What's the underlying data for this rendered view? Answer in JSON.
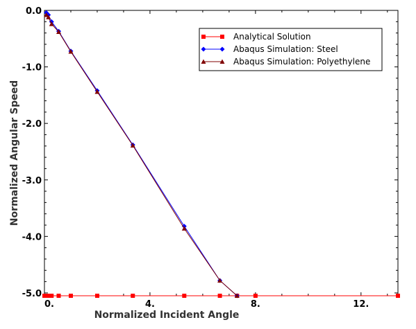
{
  "chart_data": {
    "type": "line",
    "title": "",
    "xlabel": "Normalized Incident Angle",
    "ylabel": "Normalized Angular Speed",
    "xlim": [
      0,
      13.4
    ],
    "ylim": [
      -5.05,
      0
    ],
    "x_ticks": [
      0,
      4,
      8,
      12
    ],
    "x_tick_labels": [
      "0.",
      "4.",
      "8.",
      "12."
    ],
    "y_ticks": [
      0,
      -1,
      -2,
      -3,
      -4,
      -5
    ],
    "y_tick_labels": [
      "0.0",
      "-1.0",
      "-2.0",
      "-3.0",
      "-4.0",
      "-5.0"
    ],
    "grid": false,
    "legend_position": "top-right",
    "series": [
      {
        "name": "Analytical Solution",
        "color": "#ff0000",
        "marker": "square",
        "points": [
          [
            0.0,
            -5.05
          ],
          [
            0.07,
            -5.05
          ],
          [
            0.15,
            -5.05
          ],
          [
            0.27,
            -5.05
          ],
          [
            0.54,
            -5.05
          ],
          [
            1.0,
            -5.05
          ],
          [
            2.0,
            -5.05
          ],
          [
            3.35,
            -5.05
          ],
          [
            5.3,
            -5.05
          ],
          [
            6.65,
            -5.05
          ],
          [
            7.3,
            -5.05
          ],
          [
            8.0,
            -5.05
          ],
          [
            13.4,
            -5.05
          ]
        ]
      },
      {
        "name": "Abaqus Simulation: Steel",
        "color": "#0000ff",
        "marker": "diamond",
        "points": [
          [
            0.07,
            -0.04
          ],
          [
            0.15,
            -0.08
          ],
          [
            0.27,
            -0.2
          ],
          [
            0.54,
            -0.37
          ],
          [
            1.0,
            -0.72
          ],
          [
            2.0,
            -1.42
          ],
          [
            3.35,
            -2.38
          ],
          [
            5.3,
            -3.82
          ],
          [
            6.65,
            -4.78
          ],
          [
            7.3,
            -5.05
          ]
        ]
      },
      {
        "name": "Abaqus Simulation: Polyethylene",
        "color": "#800000",
        "marker": "triangle",
        "points": [
          [
            0.07,
            -0.08
          ],
          [
            0.15,
            -0.12
          ],
          [
            0.27,
            -0.24
          ],
          [
            0.54,
            -0.38
          ],
          [
            1.0,
            -0.73
          ],
          [
            2.0,
            -1.44
          ],
          [
            3.35,
            -2.39
          ],
          [
            5.3,
            -3.86
          ],
          [
            6.65,
            -4.78
          ],
          [
            7.3,
            -5.05
          ]
        ]
      }
    ]
  }
}
